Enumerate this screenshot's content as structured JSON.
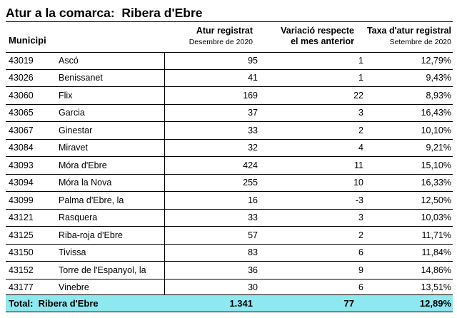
{
  "title": "Atur a la comarca:  Ribera d'Ebre",
  "headers": {
    "municipi": "Municipi",
    "atur": "Atur registrat",
    "atur_sub": "Desembre de 2020",
    "variacio_line1": "Variació respecte",
    "variacio_line2": "el mes anterior",
    "taxa": "Taxa d'atur registral",
    "taxa_sub": "Setembre de 2020"
  },
  "rows": [
    {
      "code": "43019",
      "name": "Ascó",
      "atur": "95",
      "variacio": "1",
      "taxa": "12,79%"
    },
    {
      "code": "43026",
      "name": "Benissanet",
      "atur": "41",
      "variacio": "1",
      "taxa": "9,43%"
    },
    {
      "code": "43060",
      "name": "Flix",
      "atur": "169",
      "variacio": "22",
      "taxa": "8,93%"
    },
    {
      "code": "43065",
      "name": "Garcia",
      "atur": "37",
      "variacio": "3",
      "taxa": "16,43%"
    },
    {
      "code": "43067",
      "name": "Ginestar",
      "atur": "33",
      "variacio": "2",
      "taxa": "10,10%"
    },
    {
      "code": "43084",
      "name": "Miravet",
      "atur": "32",
      "variacio": "4",
      "taxa": "9,21%"
    },
    {
      "code": "43093",
      "name": "Móra d'Ebre",
      "atur": "424",
      "variacio": "11",
      "taxa": "15,10%"
    },
    {
      "code": "43094",
      "name": "Móra la Nova",
      "atur": "255",
      "variacio": "10",
      "taxa": "16,33%"
    },
    {
      "code": "43099",
      "name": "Palma d'Ebre, la",
      "atur": "16",
      "variacio": "-3",
      "taxa": "12,50%"
    },
    {
      "code": "43121",
      "name": "Rasquera",
      "atur": "33",
      "variacio": "3",
      "taxa": "10,03%"
    },
    {
      "code": "43125",
      "name": "Riba-roja d'Ebre",
      "atur": "57",
      "variacio": "2",
      "taxa": "11,71%"
    },
    {
      "code": "43150",
      "name": "Tivissa",
      "atur": "83",
      "variacio": "6",
      "taxa": "11,84%"
    },
    {
      "code": "43152",
      "name": "Torre de l'Espanyol, la",
      "atur": "36",
      "variacio": "9",
      "taxa": "14,86%"
    },
    {
      "code": "43177",
      "name": "Vinebre",
      "atur": "30",
      "variacio": "6",
      "taxa": "13,51%"
    }
  ],
  "total": {
    "label": "Total:  Ribera d'Ebre",
    "atur": "1.341",
    "variacio": "77",
    "taxa": "12,89%"
  },
  "colors": {
    "total_background": "#8ee8ef"
  }
}
